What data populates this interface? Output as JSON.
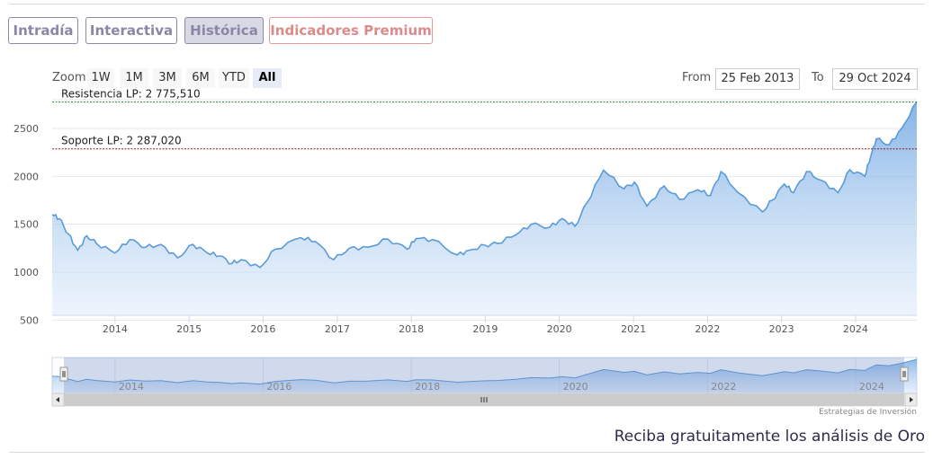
{
  "tabs": [
    {
      "label": "Intradía",
      "active": false
    },
    {
      "label": "Interactiva",
      "active": false
    },
    {
      "label": "Histórica",
      "active": true
    },
    {
      "label": "Indicadores Premium",
      "active": false
    }
  ],
  "range_selector": {
    "zoom_label": "Zoom",
    "buttons": [
      "1W",
      "1M",
      "3M",
      "6M",
      "YTD",
      "All"
    ],
    "selected": "All",
    "from_label": "From",
    "from_value": "25 Feb 2013",
    "to_label": "To",
    "to_value": "29 Oct 2024"
  },
  "chart_data": {
    "type": "area",
    "x_axis": {
      "type": "date",
      "range": [
        "2013-02-25",
        "2024-10-29"
      ],
      "tick_labels": [
        "2014",
        "2015",
        "2016",
        "2017",
        "2018",
        "2019",
        "2020",
        "2021",
        "2022",
        "2023",
        "2024"
      ]
    },
    "y_axis": {
      "range": [
        500,
        2800
      ],
      "ticks": [
        500,
        1000,
        1500,
        2000,
        2500
      ]
    },
    "grid": true,
    "series": [
      {
        "name": "",
        "x": [
          "2013-02-25",
          "2013-04-01",
          "2013-05-15",
          "2013-07-01",
          "2013-08-15",
          "2013-10-01",
          "2013-12-31",
          "2014-03-15",
          "2014-06-01",
          "2014-08-15",
          "2014-11-05",
          "2015-01-20",
          "2015-04-01",
          "2015-06-01",
          "2015-08-01",
          "2015-09-15",
          "2015-12-17",
          "2016-03-01",
          "2016-07-05",
          "2016-09-15",
          "2016-12-15",
          "2017-03-01",
          "2017-06-01",
          "2017-09-08",
          "2017-12-12",
          "2018-01-25",
          "2018-04-15",
          "2018-08-16",
          "2018-10-15",
          "2019-01-01",
          "2019-03-01",
          "2019-06-01",
          "2019-08-15",
          "2019-11-15",
          "2020-01-15",
          "2020-03-19",
          "2020-05-15",
          "2020-08-06",
          "2020-11-15",
          "2021-01-05",
          "2021-03-08",
          "2021-06-01",
          "2021-08-15",
          "2021-11-15",
          "2022-01-15",
          "2022-03-08",
          "2022-06-01",
          "2022-09-28",
          "2022-11-15",
          "2023-01-15",
          "2023-03-01",
          "2023-05-04",
          "2023-07-15",
          "2023-10-06",
          "2023-12-04",
          "2024-02-15",
          "2024-03-15",
          "2024-04-12",
          "2024-06-15",
          "2024-08-15",
          "2024-10-29"
        ],
        "values": [
          1600,
          1560,
          1400,
          1230,
          1380,
          1300,
          1200,
          1340,
          1260,
          1290,
          1150,
          1290,
          1200,
          1170,
          1090,
          1130,
          1050,
          1240,
          1360,
          1320,
          1130,
          1250,
          1260,
          1345,
          1240,
          1350,
          1340,
          1180,
          1230,
          1280,
          1300,
          1390,
          1500,
          1470,
          1560,
          1480,
          1720,
          2065,
          1870,
          1940,
          1690,
          1900,
          1760,
          1860,
          1800,
          2050,
          1830,
          1630,
          1750,
          1920,
          1830,
          2050,
          1960,
          1830,
          2070,
          2000,
          2200,
          2390,
          2330,
          2500,
          2775
        ]
      }
    ],
    "plot_lines": [
      {
        "label": "Resistencia LP: 2 775,510",
        "value": 2775.51,
        "color": "#2e7d32"
      },
      {
        "label": "Soporte LP: 2 287,020",
        "value": 2287.02,
        "color": "#8b1a1a"
      }
    ],
    "navigator_tick_labels": [
      "2014",
      "2016",
      "2018",
      "2020",
      "2022",
      "2024"
    ]
  },
  "credit": "Estrategias de Inversión",
  "cta": "Reciba gratuitamente los análisis de Oro"
}
